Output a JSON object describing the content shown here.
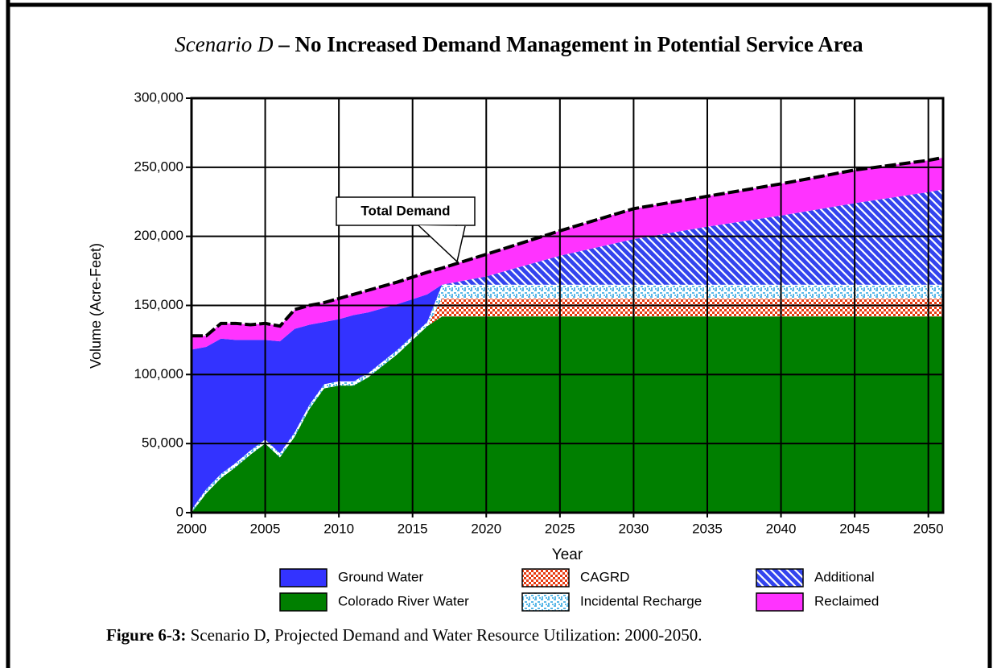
{
  "chart_data": {
    "type": "stacked_area",
    "title_italic": "Scenario D",
    "title_rest": "– No Increased Demand Management in Potential Service Area",
    "x_label": "Year",
    "y_label": "Volume (Acre-Feet)",
    "annotation": "Total Demand",
    "caption_label": "Figure 6-3:",
    "caption_text": "Scenario D, Projected Demand and Water Resource Utilization: 2000-2050.",
    "x": [
      2000,
      2001,
      2002,
      2003,
      2004,
      2005,
      2006,
      2007,
      2008,
      2009,
      2010,
      2011,
      2012,
      2014,
      2016,
      2017,
      2020,
      2025,
      2030,
      2035,
      2040,
      2045,
      2050,
      2051
    ],
    "series": [
      {
        "name": "Colorado River Water",
        "color": "#007f00",
        "pattern": "solid",
        "values": [
          0,
          14000,
          25000,
          33000,
          42000,
          50000,
          40000,
          55000,
          75000,
          90000,
          92000,
          92000,
          98000,
          115000,
          135000,
          142000,
          142000,
          142000,
          142000,
          142000,
          142000,
          142000,
          142000,
          142000
        ]
      },
      {
        "name": "CAGRD",
        "color": "#e83a10",
        "pattern": "checker",
        "values": [
          0,
          0,
          0,
          0,
          0,
          0,
          0,
          0,
          0,
          0,
          0,
          0,
          0,
          0,
          0,
          13000,
          13000,
          13000,
          13000,
          13000,
          13000,
          13000,
          13000,
          13000
        ]
      },
      {
        "name": "Incidental Recharge",
        "color": "#5ab8e8",
        "pattern": "dots",
        "values": [
          2000,
          3000,
          3000,
          3000,
          3000,
          3000,
          3000,
          3000,
          3000,
          3000,
          3000,
          3000,
          3000,
          3000,
          3000,
          10000,
          10000,
          10000,
          10000,
          10000,
          10000,
          10000,
          10000,
          10000
        ]
      },
      {
        "name": "Ground Water",
        "color": "#3333ff",
        "pattern": "solid",
        "values": [
          116000,
          103000,
          98000,
          89000,
          80000,
          72000,
          81000,
          75000,
          58000,
          45000,
          45000,
          48000,
          44000,
          33000,
          20000,
          0,
          0,
          0,
          0,
          0,
          0,
          0,
          0,
          0
        ]
      },
      {
        "name": "Additional",
        "color": "#3344ee",
        "pattern": "diagonal",
        "values": [
          0,
          0,
          0,
          0,
          0,
          0,
          0,
          0,
          0,
          0,
          0,
          0,
          0,
          0,
          0,
          0,
          6000,
          21000,
          33000,
          42000,
          50000,
          59000,
          67000,
          69000
        ]
      },
      {
        "name": "Reclaimed",
        "color": "#ff33ff",
        "pattern": "solid",
        "values": [
          10000,
          8000,
          11000,
          12000,
          11000,
          12000,
          11000,
          14000,
          14000,
          14000,
          15000,
          15000,
          16000,
          16000,
          16000,
          12000,
          16000,
          18000,
          22000,
          22000,
          23000,
          24000,
          23000,
          23000
        ]
      }
    ],
    "xlim": [
      2000,
      2051
    ],
    "xticks": [
      2000,
      2005,
      2010,
      2015,
      2020,
      2025,
      2030,
      2035,
      2040,
      2045,
      2050
    ],
    "ylim": [
      0,
      300000
    ],
    "yticks": [
      0,
      {
        "value": 50000,
        "label": "50,000"
      },
      {
        "value": 100000,
        "label": "100,000"
      },
      {
        "value": 150000,
        "label": "150,000"
      },
      {
        "value": 200000,
        "label": "200,000"
      },
      {
        "value": 250000,
        "label": "250,000"
      },
      {
        "value": 300000,
        "label": "300,000"
      }
    ],
    "grid": true
  }
}
